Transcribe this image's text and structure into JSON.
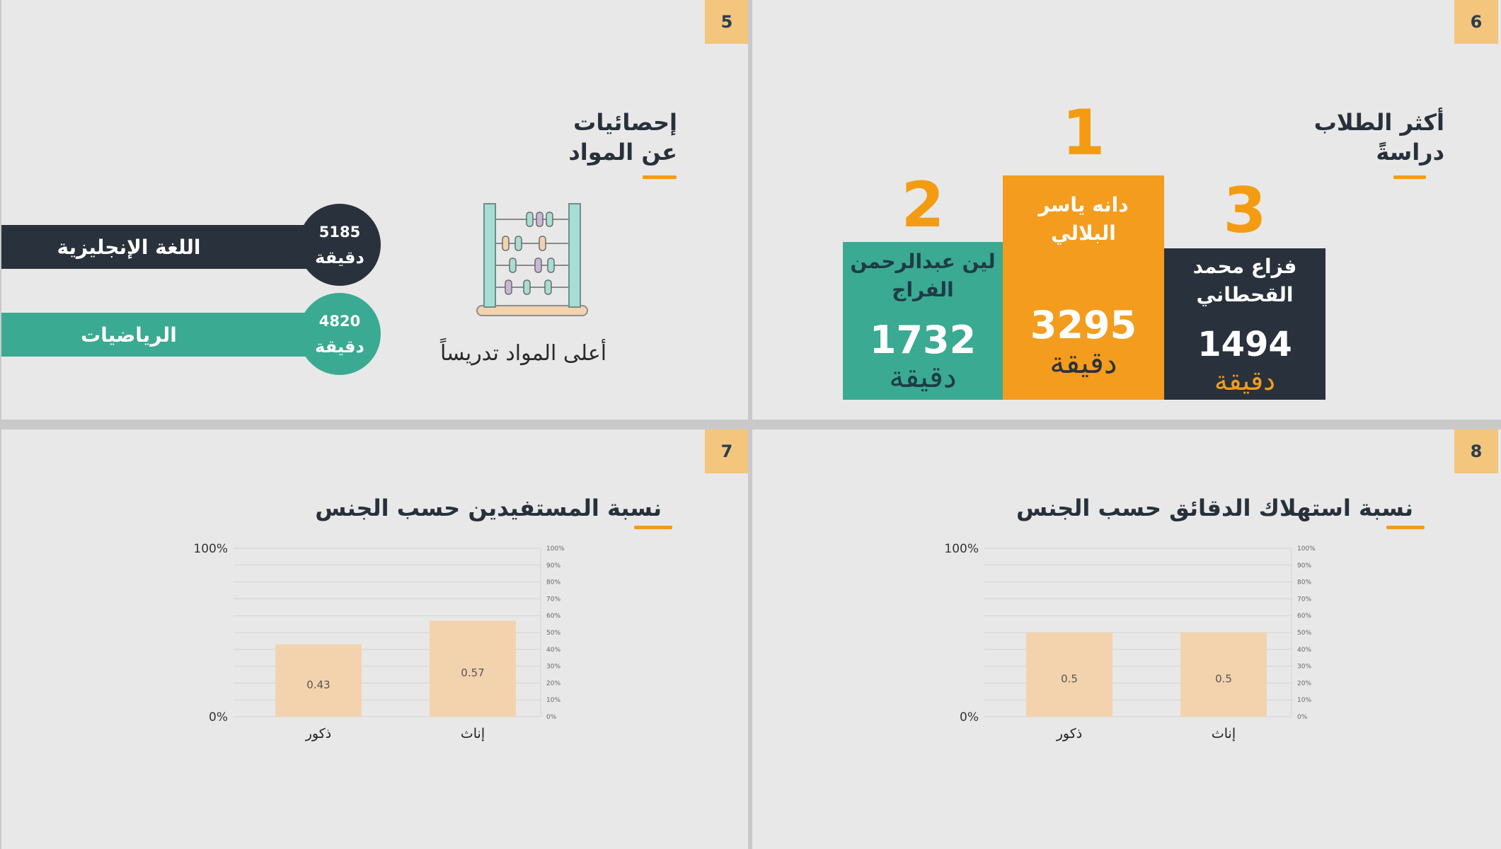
{
  "slides": {
    "s5": {
      "number": "5",
      "title_line1": "إحصائيات",
      "title_line2": "عن المواد",
      "caption": "أعلى المواد تدريساً",
      "subjects": [
        {
          "name": "اللغة الإنجليزية",
          "value": "5185",
          "unit": "دقيقة",
          "color": "#29323c"
        },
        {
          "name": "الرياضيات",
          "value": "4820",
          "unit": "دقيقة",
          "color": "#3aaa92"
        }
      ],
      "icon": "abacus-icon"
    },
    "s6": {
      "number": "6",
      "title_line1": "أكثر الطلاب",
      "title_line2": "دراسةً",
      "students": [
        {
          "rank": "2",
          "name": "لين عبدالرحمن\nالفراج",
          "value": "1732",
          "unit": "دقيقة",
          "color": "#3aaa92"
        },
        {
          "rank": "1",
          "name": "دانه ياسر\nالبلالي",
          "value": "3295",
          "unit": "دقيقة",
          "color": "#f39c1e"
        },
        {
          "rank": "3",
          "name": "فزاع محمد\nالقحطاني",
          "value": "1494",
          "unit": "دقيقة",
          "color": "#29323c"
        }
      ]
    },
    "s7": {
      "number": "7",
      "title": "نسبة المستفيدين حسب الجنس"
    },
    "s8": {
      "number": "8",
      "title": "نسبة استهلاك الدقائق حسب الجنس"
    }
  },
  "colors": {
    "accent": "#f39c12",
    "badge": "#f3c57d",
    "bar": "#f3d3ae",
    "dark": "#29323c",
    "teal": "#3aaa92"
  },
  "chart_data": [
    {
      "type": "bar",
      "categories": [
        "ذكور",
        "إناث"
      ],
      "values": [
        0.43,
        0.57
      ],
      "value_labels": [
        "0.43",
        "0.57"
      ],
      "title": "نسبة المستفيدين حسب الجنس",
      "ylim": [
        0,
        1
      ],
      "y_ticks_left": [
        "0%",
        "100%"
      ],
      "y_ticks_right": [
        "0%",
        "10%",
        "20%",
        "30%",
        "40%",
        "50%",
        "60%",
        "70%",
        "80%",
        "90%",
        "100%"
      ],
      "grid": true
    },
    {
      "type": "bar",
      "categories": [
        "ذكور",
        "إناث"
      ],
      "values": [
        0.5,
        0.5
      ],
      "value_labels": [
        "0.5",
        "0.5"
      ],
      "title": "نسبة استهلاك الدقائق حسب الجنس",
      "ylim": [
        0,
        1
      ],
      "y_ticks_left": [
        "0%",
        "100%"
      ],
      "y_ticks_right": [
        "0%",
        "10%",
        "20%",
        "30%",
        "40%",
        "50%",
        "60%",
        "70%",
        "80%",
        "90%",
        "100%"
      ],
      "grid": true
    }
  ]
}
